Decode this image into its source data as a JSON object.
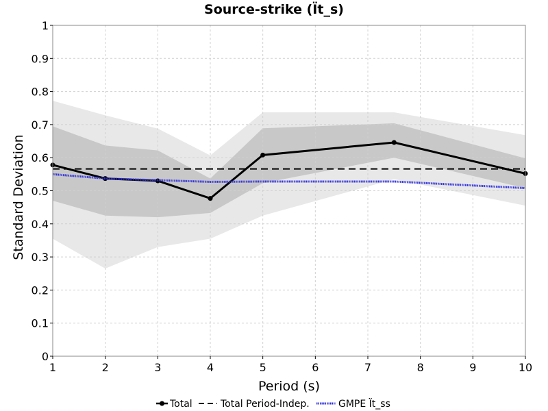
{
  "chart_data": {
    "type": "line",
    "title": "Source-strike (Ït_s)",
    "xlabel": "Period (s)",
    "ylabel": "Standard Deviation",
    "xlim": [
      1,
      10
    ],
    "ylim": [
      0,
      1
    ],
    "xticks": [
      1,
      2,
      3,
      4,
      5,
      6,
      7,
      8,
      9,
      10
    ],
    "yticks": [
      0,
      0.1,
      0.2,
      0.3,
      0.4,
      0.5,
      0.6,
      0.7,
      0.8,
      0.9,
      1
    ],
    "ytick_labels": [
      "0",
      "0.1",
      "0.2",
      "0.3",
      "0.4",
      "0.5",
      "0.6",
      "0.7",
      "0.8",
      "0.9",
      "1"
    ],
    "grid": true,
    "legend_position": "bottom-center",
    "bands": [
      {
        "color": "#e8e8e8",
        "x": [
          1,
          2,
          3,
          4,
          5,
          7.5,
          10
        ],
        "lower": [
          0.355,
          0.265,
          0.33,
          0.355,
          0.425,
          0.535,
          0.455
        ],
        "upper": [
          0.772,
          0.728,
          0.688,
          0.607,
          0.737,
          0.737,
          0.668
        ]
      },
      {
        "color": "#c8c8c8",
        "x": [
          1,
          2,
          3,
          4,
          5,
          7.5,
          10
        ],
        "lower": [
          0.47,
          0.425,
          0.42,
          0.433,
          0.523,
          0.6,
          0.508
        ],
        "upper": [
          0.695,
          0.637,
          0.622,
          0.537,
          0.689,
          0.704,
          0.598
        ]
      }
    ],
    "series": [
      {
        "name": "Total",
        "style": "solid-marker",
        "color": "#000000",
        "x": [
          1,
          2,
          3,
          4,
          5,
          7.5,
          10
        ],
        "y": [
          0.578,
          0.537,
          0.53,
          0.477,
          0.608,
          0.646,
          0.552
        ]
      },
      {
        "name": "Total Period-Indep.",
        "style": "dashed",
        "color": "#000000",
        "x": [
          1,
          10
        ],
        "y": [
          0.566,
          0.566
        ]
      },
      {
        "name": "GMPE Ït_ss",
        "style": "dotted",
        "color": "#3333dd",
        "x": [
          1,
          2,
          3,
          4,
          5,
          7.5,
          10
        ],
        "y": [
          0.55,
          0.537,
          0.532,
          0.527,
          0.528,
          0.528,
          0.508
        ]
      }
    ]
  }
}
